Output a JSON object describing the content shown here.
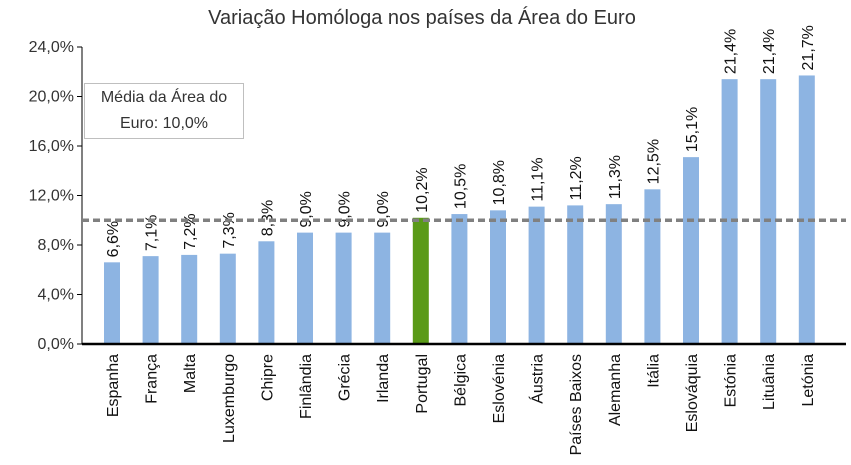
{
  "chart_data": {
    "type": "bar",
    "title": "Variação Homóloga nos países da Área do Euro",
    "categories": [
      "Espanha",
      "França",
      "Malta",
      "Luxemburgo",
      "Chipre",
      "Finlândia",
      "Grécia",
      "Irlanda",
      "Portugal",
      "Bélgica",
      "Eslovénia",
      "Áustria",
      "Países Baixos",
      "Alemanha",
      "Itália",
      "Eslováquia",
      "Estónia",
      "Lituânia",
      "Letónia"
    ],
    "values": [
      6.6,
      7.1,
      7.2,
      7.3,
      8.3,
      9.0,
      9.0,
      9.0,
      10.2,
      10.5,
      10.8,
      11.1,
      11.2,
      11.3,
      12.5,
      15.1,
      21.4,
      21.4,
      21.7
    ],
    "data_labels": [
      "6,6%",
      "7,1%",
      "7,2%",
      "7,3%",
      "8,3%",
      "9,0%",
      "9,0%",
      "9,0%",
      "10,2%",
      "10,5%",
      "10,8%",
      "11,1%",
      "11,2%",
      "11,3%",
      "12,5%",
      "15,1%",
      "21,4%",
      "21,4%",
      "21,7%"
    ],
    "ylim": [
      0,
      24
    ],
    "yticks": [
      0,
      4,
      8,
      12,
      16,
      20,
      24
    ],
    "ytick_labels": [
      "0,0%",
      "4,0%",
      "8,0%",
      "12,0%",
      "16,0%",
      "20,0%",
      "24,0%"
    ],
    "reference_line": {
      "value": 10.0,
      "style": "dashed",
      "color": "#808080"
    },
    "annotation": "Média da Área do Euro: 10,0%",
    "colors": {
      "bar": "#8db4e2",
      "highlight": "#5a9a17",
      "highlight_category": "Portugal",
      "axis": "#000000"
    },
    "grid": false,
    "legend": "none"
  }
}
